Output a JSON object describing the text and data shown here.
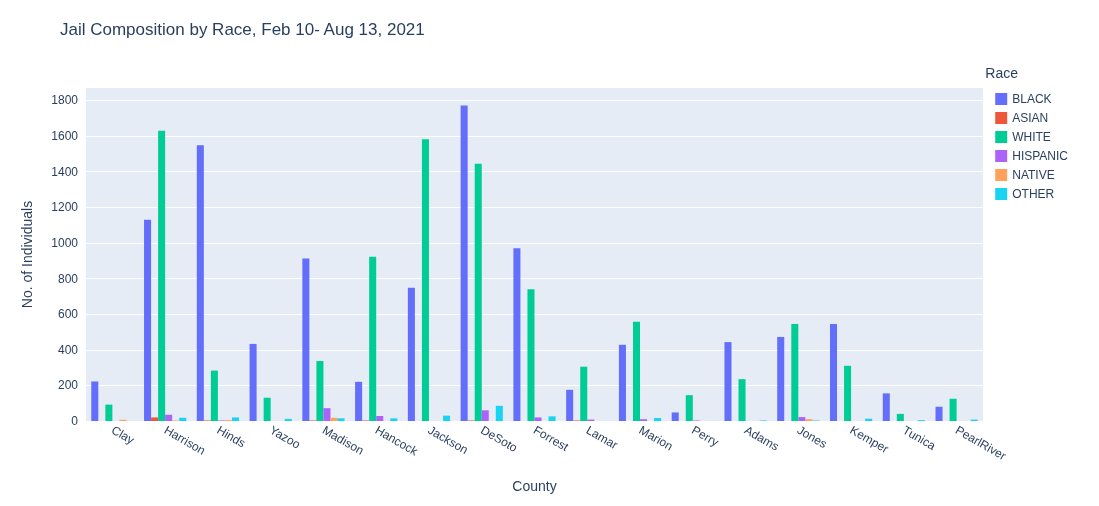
{
  "chart_data": {
    "type": "bar",
    "title": "Jail Composition by Race, Feb 10- Aug 13, 2021",
    "xlabel": "County",
    "ylabel": "No. of Individuals",
    "legend_title": "Race",
    "categories": [
      "Clay",
      "Harrison",
      "Hinds",
      "Yazoo",
      "Madison",
      "Hancock",
      "Jackson",
      "DeSoto",
      "Forrest",
      "Lamar",
      "Marion",
      "Perry",
      "Adams",
      "Jones",
      "Kemper",
      "Tunica",
      "PearlRiver"
    ],
    "series": [
      {
        "name": "BLACK",
        "color": "#636efa",
        "values": [
          222,
          1130,
          1548,
          433,
          912,
          220,
          748,
          1772,
          970,
          175,
          428,
          48,
          443,
          472,
          545,
          155,
          80
        ]
      },
      {
        "name": "ASIAN",
        "color": "#ef553b",
        "values": [
          null,
          20,
          3,
          0,
          3,
          3,
          0,
          3,
          0,
          3,
          0,
          0,
          0,
          0,
          0,
          0,
          0
        ]
      },
      {
        "name": "WHITE",
        "color": "#00cc96",
        "values": [
          92,
          1630,
          283,
          130,
          337,
          922,
          1582,
          1445,
          740,
          305,
          558,
          145,
          235,
          545,
          310,
          40,
          125
        ]
      },
      {
        "name": "HISPANIC",
        "color": "#ab63fa",
        "values": [
          0,
          35,
          3,
          0,
          72,
          28,
          0,
          60,
          20,
          8,
          10,
          3,
          0,
          22,
          0,
          0,
          0
        ]
      },
      {
        "name": "NATIVE",
        "color": "#ffa15a",
        "values": [
          7,
          3,
          5,
          null,
          18,
          0,
          0,
          0,
          0,
          0,
          0,
          0,
          0,
          10,
          0,
          0,
          0
        ]
      },
      {
        "name": "OTHER",
        "color": "#19d3f3",
        "values": [
          null,
          18,
          20,
          12,
          15,
          15,
          30,
          85,
          26,
          null,
          17,
          null,
          3,
          3,
          13,
          5,
          8
        ]
      }
    ],
    "ylim": [
      0,
      1870
    ],
    "yticks": [
      0,
      200,
      400,
      600,
      800,
      1000,
      1200,
      1400,
      1600,
      1800
    ],
    "grid": "y",
    "legend": "top right"
  }
}
